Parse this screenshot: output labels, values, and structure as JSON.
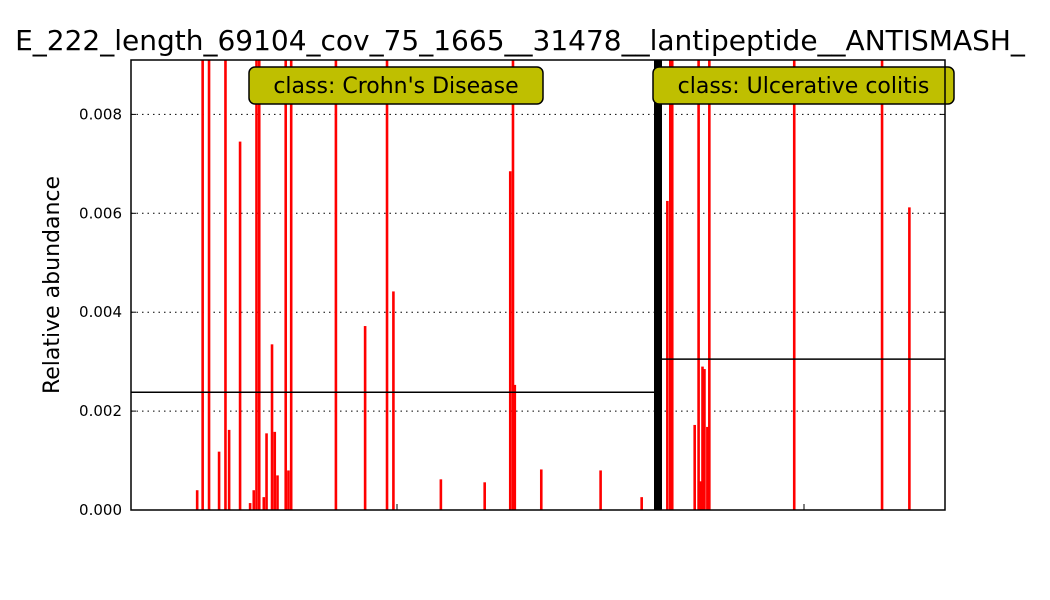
{
  "chart_data": {
    "type": "bar",
    "title": "E_222_length_69104_cov_75_1665__31478__lantipeptide__ANTISMASH_",
    "xlabel": "",
    "ylabel": "Relative abundance",
    "ylim": [
      0,
      0.0091
    ],
    "yticks": [
      "0.000",
      "0.002",
      "0.004",
      "0.006",
      "0.008"
    ],
    "grid": true,
    "colors": {
      "bar": "#ff0000",
      "separator": "#000000",
      "mean_line": "#000000",
      "label_box": "#bfbf00"
    },
    "groups": [
      {
        "label": "class: Crohn's Disease",
        "mean": 0.00238,
        "values": [
          0,
          0,
          0,
          0,
          0,
          0,
          0,
          0,
          0,
          0,
          0,
          0,
          0,
          0,
          0,
          0,
          0,
          0,
          0,
          0,
          0,
          0,
          0,
          0,
          0,
          0,
          0,
          0,
          0,
          0,
          0,
          0,
          0,
          0,
          0,
          0,
          0,
          0,
          0,
          0,
          0,
          0,
          0,
          0,
          0,
          0,
          0,
          0,
          0,
          0,
          0,
          0,
          0,
          0,
          0,
          0,
          0,
          0,
          0,
          0,
          0,
          0,
          0,
          0,
          0,
          0,
          0,
          0,
          0,
          0,
          0,
          0,
          0.0004,
          0,
          0,
          0,
          0,
          0,
          0.0095,
          0,
          0,
          0,
          0,
          0,
          0,
          0.0095,
          0,
          0,
          0,
          0,
          0,
          0,
          0,
          0,
          0,
          0,
          0.00118,
          0,
          0,
          0,
          0,
          0,
          0,
          0.0095,
          0,
          0,
          0,
          0.00162,
          0,
          0,
          0,
          0,
          0,
          0,
          0,
          0,
          0,
          0,
          0,
          0.00745,
          0,
          0,
          0,
          0,
          0,
          0,
          0,
          0,
          0,
          0,
          0.00014,
          0,
          0,
          0,
          0.0004,
          0,
          0,
          0.0095,
          0,
          0,
          0.0095,
          0,
          0,
          0,
          0,
          0.00026,
          0,
          0,
          0.00155,
          0,
          0,
          0,
          0,
          0,
          0.00335,
          0,
          0,
          0.00158,
          0,
          0,
          0.0007,
          0,
          0,
          0,
          0,
          0,
          0,
          0,
          0,
          0.0095,
          0,
          0,
          0.0008,
          0,
          0,
          0.0095,
          0,
          0,
          0,
          0,
          0,
          0,
          0,
          0,
          0,
          0,
          0,
          0,
          0,
          0,
          0,
          0,
          0,
          0,
          0,
          0,
          0,
          0,
          0,
          0,
          0,
          0,
          0,
          0,
          0,
          0,
          0,
          0,
          0,
          0,
          0,
          0,
          0,
          0,
          0,
          0,
          0,
          0,
          0,
          0,
          0,
          0,
          0,
          0,
          0.0095,
          0,
          0,
          0,
          0,
          0,
          0,
          0,
          0,
          0,
          0,
          0,
          0,
          0,
          0,
          0,
          0,
          0,
          0,
          0,
          0,
          0,
          0,
          0,
          0,
          0,
          0,
          0,
          0,
          0,
          0,
          0,
          0.00372,
          0,
          0,
          0,
          0,
          0,
          0,
          0,
          0,
          0,
          0,
          0,
          0,
          0,
          0,
          0,
          0,
          0,
          0,
          0,
          0,
          0,
          0,
          0,
          0.0095,
          0,
          0,
          0,
          0,
          0,
          0,
          0.00442,
          0,
          0,
          0,
          0,
          0,
          0,
          0,
          0,
          0,
          0,
          0,
          0,
          0,
          0,
          0,
          0,
          0,
          0,
          0,
          0,
          0,
          0,
          0,
          0,
          0,
          0,
          0,
          0,
          0,
          0,
          0,
          0,
          0,
          0,
          0,
          0,
          0,
          0,
          0,
          0,
          0,
          0,
          0,
          0,
          0,
          0,
          0,
          0,
          0,
          0,
          0,
          0.00062,
          0,
          0,
          0,
          0,
          0,
          0,
          0,
          0,
          0,
          0,
          0,
          0,
          0,
          0,
          0,
          0,
          0,
          0,
          0,
          0,
          0,
          0,
          0,
          0,
          0,
          0,
          0,
          0,
          0,
          0,
          0,
          0,
          0,
          0,
          0,
          0,
          0,
          0,
          0,
          0,
          0,
          0,
          0,
          0,
          0,
          0,
          0,
          0.00056,
          0,
          0,
          0,
          0,
          0,
          0,
          0,
          0,
          0,
          0,
          0,
          0,
          0,
          0,
          0,
          0,
          0,
          0,
          0,
          0,
          0,
          0,
          0,
          0,
          0,
          0,
          0,
          0.00685,
          0,
          0,
          0.0095,
          0,
          0.00253,
          0,
          0,
          0,
          0,
          0,
          0,
          0,
          0,
          0,
          0,
          0,
          0,
          0,
          0,
          0,
          0,
          0,
          0,
          0,
          0,
          0,
          0,
          0,
          0,
          0,
          0,
          0,
          0,
          0.00082,
          0,
          0,
          0,
          0,
          0,
          0,
          0,
          0,
          0,
          0,
          0,
          0,
          0,
          0,
          0,
          0,
          0,
          0,
          0,
          0,
          0,
          0,
          0,
          0,
          0,
          0,
          0,
          0,
          0,
          0,
          0,
          0,
          0,
          0,
          0,
          0,
          0,
          0,
          0,
          0,
          0,
          0,
          0,
          0,
          0,
          0,
          0,
          0,
          0,
          0,
          0,
          0,
          0,
          0,
          0,
          0,
          0,
          0,
          0,
          0,
          0,
          0,
          0,
          0,
          0.0008,
          0,
          0,
          0,
          0,
          0,
          0,
          0,
          0,
          0,
          0,
          0,
          0,
          0,
          0,
          0,
          0,
          0,
          0,
          0,
          0,
          0,
          0,
          0,
          0,
          0,
          0,
          0,
          0,
          0,
          0,
          0,
          0,
          0,
          0,
          0,
          0,
          0,
          0,
          0,
          0,
          0,
          0,
          0,
          0,
          0.00026,
          0,
          0,
          0,
          0,
          0,
          0,
          0,
          0,
          0,
          0,
          0,
          0,
          0
        ]
      },
      {
        "label": "class: Ulcerative colitis",
        "mean": 0.00305,
        "values": [
          0,
          0,
          0,
          0,
          0,
          0.00625,
          0,
          0,
          0.0095,
          0,
          0.0095,
          0,
          0,
          0,
          0,
          0,
          0,
          0,
          0,
          0,
          0,
          0,
          0,
          0,
          0,
          0,
          0,
          0,
          0,
          0,
          0,
          0,
          0,
          0.00172,
          0,
          0,
          0,
          0.0095,
          0,
          0.00058,
          0,
          0.0029,
          0,
          0.00285,
          0,
          0,
          0.00168,
          0,
          0.0095,
          0,
          0,
          0,
          0,
          0,
          0,
          0,
          0,
          0,
          0,
          0,
          0,
          0,
          0,
          0,
          0,
          0,
          0,
          0,
          0,
          0,
          0,
          0,
          0,
          0,
          0,
          0,
          0,
          0,
          0,
          0,
          0,
          0,
          0,
          0,
          0,
          0,
          0,
          0,
          0,
          0,
          0,
          0,
          0,
          0,
          0,
          0,
          0,
          0,
          0,
          0,
          0,
          0,
          0,
          0,
          0,
          0,
          0,
          0,
          0,
          0,
          0,
          0,
          0,
          0,
          0,
          0,
          0,
          0,
          0,
          0,
          0,
          0,
          0,
          0,
          0,
          0,
          0,
          0,
          0,
          0,
          0,
          0,
          0,
          0,
          0,
          0.0095,
          0,
          0,
          0,
          0,
          0,
          0,
          0,
          0,
          0,
          0,
          0,
          0,
          0,
          0,
          0,
          0,
          0,
          0,
          0,
          0,
          0,
          0,
          0,
          0,
          0,
          0,
          0,
          0,
          0,
          0,
          0,
          0,
          0,
          0,
          0,
          0,
          0,
          0,
          0,
          0,
          0,
          0,
          0,
          0,
          0,
          0,
          0,
          0,
          0,
          0,
          0,
          0,
          0,
          0,
          0,
          0,
          0,
          0,
          0,
          0,
          0,
          0,
          0,
          0,
          0,
          0,
          0,
          0,
          0,
          0,
          0,
          0,
          0,
          0,
          0,
          0,
          0,
          0,
          0,
          0,
          0,
          0,
          0,
          0,
          0,
          0,
          0,
          0,
          0,
          0.0095,
          0,
          0,
          0,
          0,
          0,
          0,
          0,
          0,
          0,
          0,
          0,
          0,
          0,
          0,
          0,
          0,
          0,
          0,
          0,
          0,
          0,
          0,
          0,
          0,
          0,
          0,
          0,
          0.00612,
          0,
          0,
          0,
          0,
          0,
          0,
          0,
          0,
          0,
          0,
          0,
          0,
          0,
          0,
          0,
          0,
          0,
          0,
          0,
          0,
          0,
          0,
          0,
          0,
          0,
          0,
          0,
          0,
          0,
          0,
          0,
          0,
          0,
          0,
          0,
          0
        ]
      }
    ]
  }
}
